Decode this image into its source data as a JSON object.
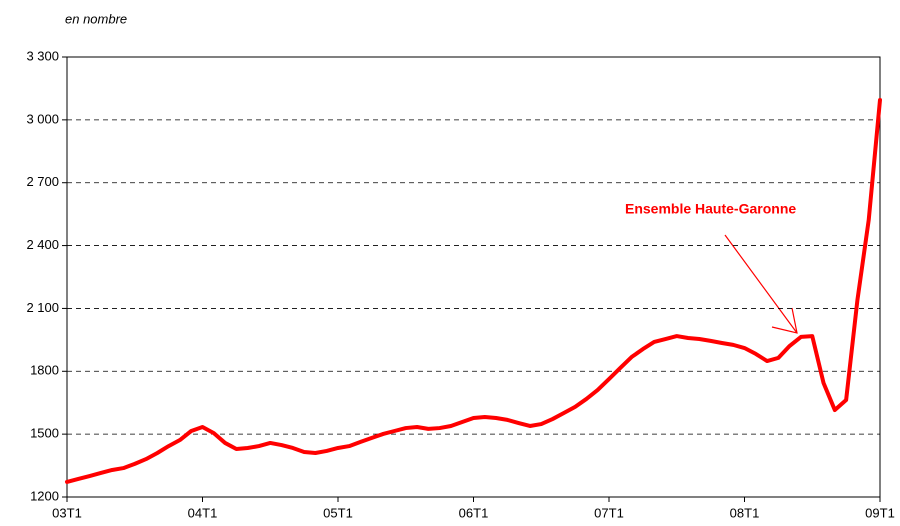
{
  "chart_data": {
    "type": "line",
    "y_label": "en nombre",
    "annotation": "Ensemble Haute-Garonne",
    "categories": [
      "03T1",
      null,
      null,
      null,
      null,
      null,
      null,
      null,
      null,
      null,
      null,
      null,
      "04T1",
      null,
      null,
      null,
      null,
      null,
      null,
      null,
      null,
      null,
      null,
      null,
      "05T1",
      null,
      null,
      null,
      null,
      null,
      null,
      null,
      null,
      null,
      null,
      null,
      "06T1",
      null,
      null,
      null,
      null,
      null,
      null,
      null,
      null,
      null,
      null,
      null,
      "07T1",
      null,
      null,
      null,
      null,
      null,
      null,
      null,
      null,
      null,
      null,
      null,
      "08T1",
      null,
      null,
      null,
      null,
      null,
      null,
      null,
      null,
      null,
      null,
      null,
      "09T1"
    ],
    "series": [
      {
        "name": "Ensemble Haute-Garonne",
        "color": "#ff0000",
        "values": [
          1272,
          1286,
          1300,
          1315,
          1329,
          1338,
          1358,
          1381,
          1410,
          1443,
          1472,
          1515,
          1534,
          1505,
          1458,
          1429,
          1434,
          1443,
          1458,
          1448,
          1434,
          1415,
          1410,
          1420,
          1434,
          1443,
          1463,
          1482,
          1501,
          1515,
          1529,
          1534,
          1525,
          1529,
          1539,
          1558,
          1577,
          1582,
          1577,
          1568,
          1553,
          1539,
          1548,
          1572,
          1601,
          1630,
          1668,
          1711,
          1763,
          1816,
          1868,
          1906,
          1940,
          1954,
          1968,
          1959,
          1954,
          1945,
          1935,
          1926,
          1911,
          1883,
          1849,
          1864,
          1921,
          1964,
          1968,
          1744,
          1615,
          1663,
          2140,
          2522,
          3095
        ]
      }
    ],
    "ylim": [
      1200,
      3300
    ],
    "yticks": [
      1200,
      1500,
      1800,
      {
        "value": 2100,
        "label": "2 100"
      },
      {
        "value": 2400,
        "label": "2 400"
      },
      {
        "value": 2700,
        "label": "2 700"
      },
      {
        "value": 3000,
        "label": "3 000"
      },
      {
        "value": 3300,
        "label": "3 300"
      }
    ],
    "grid": true
  }
}
